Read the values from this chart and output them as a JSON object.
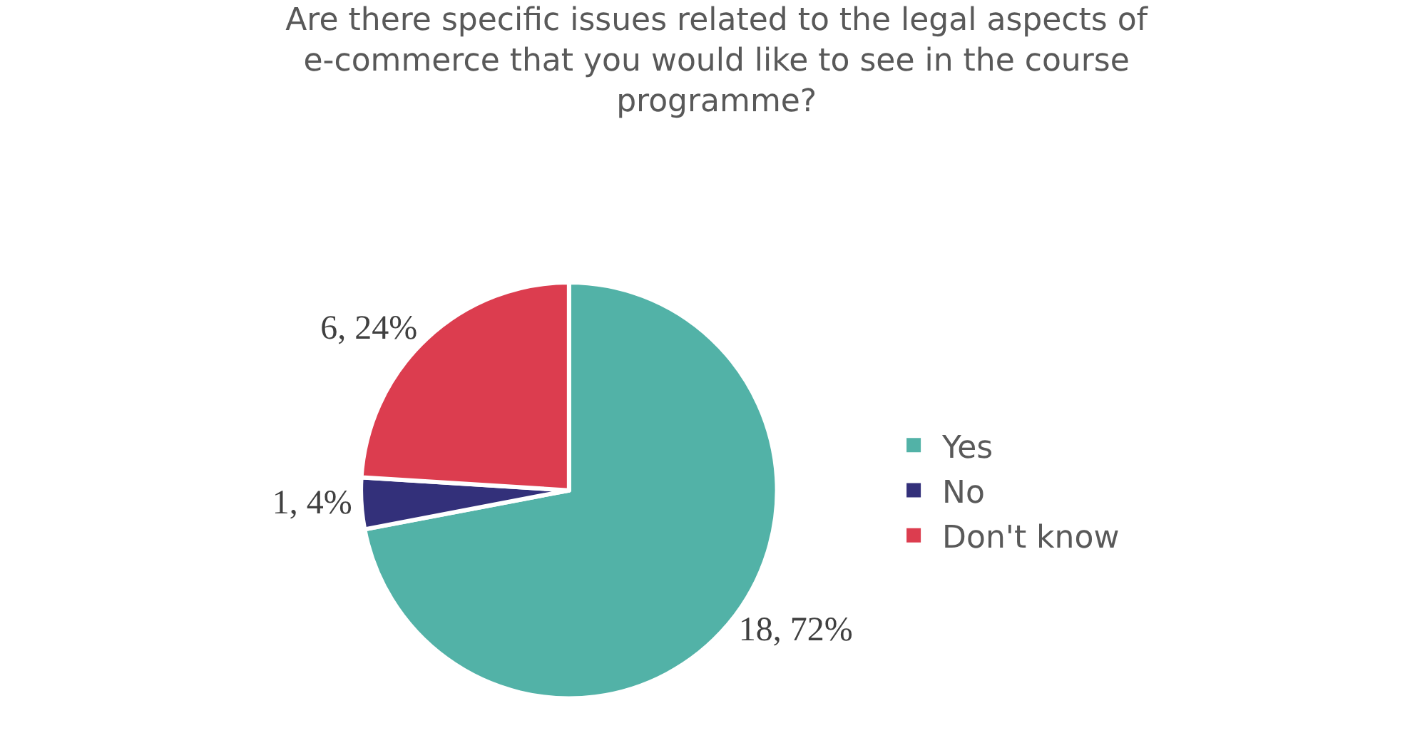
{
  "chart_data": {
    "type": "pie",
    "title": "Are there specific issues related to the legal aspects of e-commerce that you would like to see in the course programme?",
    "categories": [
      "Yes",
      "No",
      "Don't know"
    ],
    "values": [
      18,
      1,
      6
    ],
    "value_labels": [
      "18, 72%",
      "1, 4%",
      "6, 24%"
    ],
    "colors": [
      "#52b2a7",
      "#33307a",
      "#dc3d4f"
    ],
    "legend": "right"
  }
}
